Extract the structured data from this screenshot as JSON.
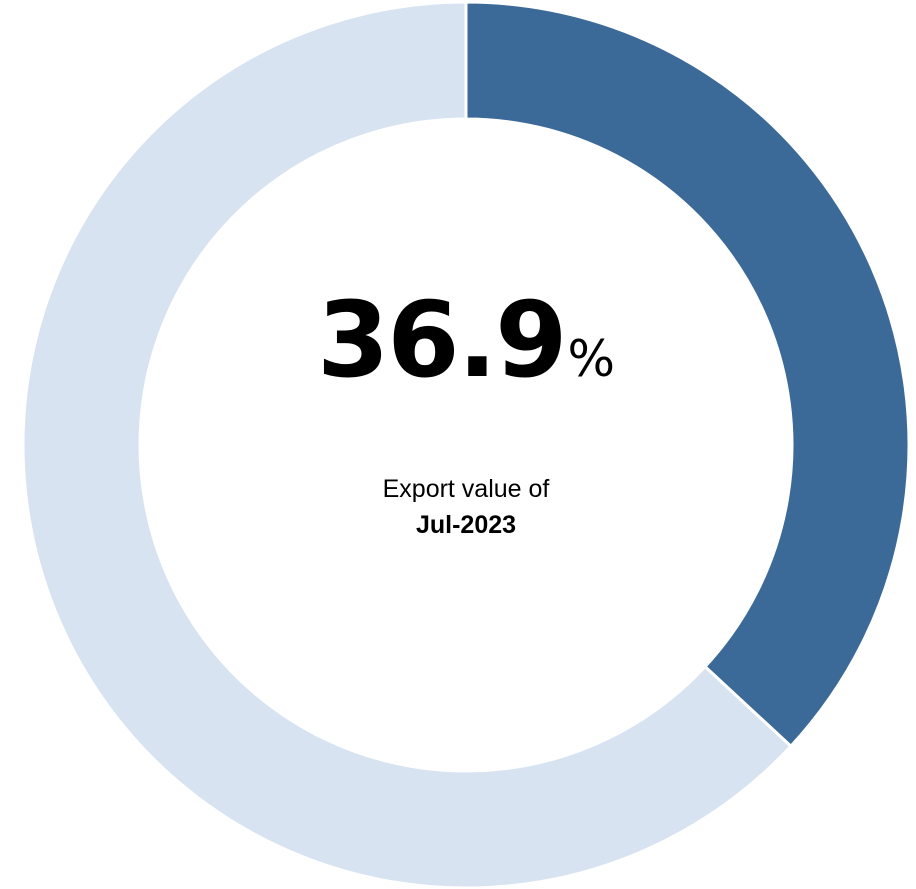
{
  "chart_data": {
    "type": "pie",
    "style": "donut",
    "slices": [
      {
        "value": 36.9,
        "color": "#3b6a98"
      },
      {
        "value": 63.1,
        "color": "#d7e3f0"
      }
    ],
    "start_angle_deg": 0,
    "direction": "clockwise",
    "separator_color": "#ffffff",
    "center_text": {
      "value": "36.9",
      "unit": "%",
      "caption_line1": "Export value of",
      "caption_line2": "Jul-2023"
    }
  }
}
